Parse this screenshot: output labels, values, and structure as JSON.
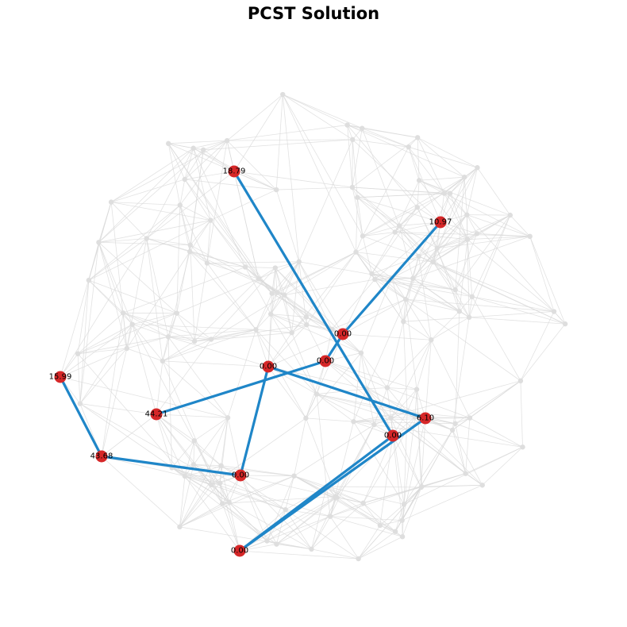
{
  "title": "PCST Solution",
  "colors": {
    "solution_edge": "#1f86c8",
    "solution_node": "#d62728",
    "background_edge": "#d9d9d9",
    "background_node": "#dedede"
  },
  "solution_nodes": [
    {
      "id": "a",
      "label": "18.79"
    },
    {
      "id": "b",
      "label": "10.97"
    },
    {
      "id": "c",
      "label": "0.00"
    },
    {
      "id": "d",
      "label": "0.00"
    },
    {
      "id": "e",
      "label": "0.00"
    },
    {
      "id": "f",
      "label": "15.99"
    },
    {
      "id": "g",
      "label": "44.21"
    },
    {
      "id": "h",
      "label": "6.10"
    },
    {
      "id": "i",
      "label": "0.00"
    },
    {
      "id": "j",
      "label": "43.68"
    },
    {
      "id": "k",
      "label": "0.00"
    },
    {
      "id": "l",
      "label": "0.00"
    }
  ],
  "solution_edges": [
    [
      "a",
      "i"
    ],
    [
      "b",
      "c"
    ],
    [
      "c",
      "d"
    ],
    [
      "d",
      "g"
    ],
    [
      "e",
      "h"
    ],
    [
      "e",
      "k"
    ],
    [
      "f",
      "j"
    ],
    [
      "j",
      "k"
    ],
    [
      "h",
      "l"
    ],
    [
      "i",
      "l"
    ]
  ]
}
